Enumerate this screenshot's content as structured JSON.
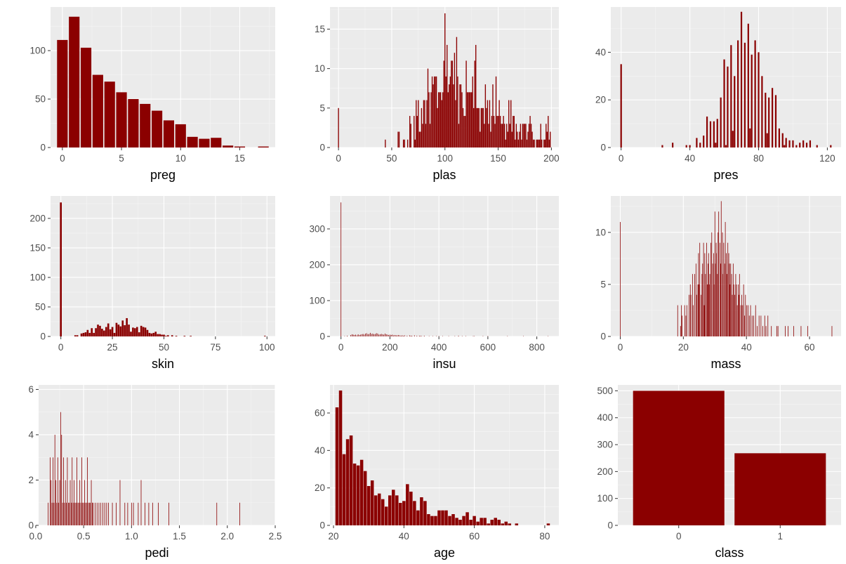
{
  "bar_color": "#8b0000",
  "panel_background": "#ebebeb",
  "chart_data": [
    {
      "type": "bar",
      "xlabel": "preg",
      "xlim": [
        -1,
        18
      ],
      "ylim": [
        0,
        145
      ],
      "xticks": [
        0,
        5,
        10,
        15
      ],
      "yticks": [
        0,
        50,
        100
      ],
      "bar_width": 0.9,
      "x": [
        0,
        1,
        2,
        3,
        4,
        5,
        6,
        7,
        8,
        9,
        10,
        11,
        12,
        13,
        14,
        15,
        17
      ],
      "values": [
        111,
        135,
        103,
        75,
        68,
        57,
        50,
        45,
        38,
        28,
        24,
        11,
        9,
        10,
        2,
        1,
        1
      ]
    },
    {
      "type": "bar",
      "xlabel": "plas",
      "xlim": [
        -8,
        207
      ],
      "ylim": [
        0,
        17.8
      ],
      "xticks": [
        0,
        50,
        100,
        150,
        200
      ],
      "yticks": [
        0,
        5,
        10,
        15
      ],
      "bar_width": 0.9,
      "x": [
        0,
        44,
        56,
        57,
        61,
        62,
        65,
        67,
        68,
        71,
        72,
        73,
        74,
        75,
        76,
        77,
        78,
        79,
        80,
        81,
        82,
        83,
        84,
        85,
        86,
        87,
        88,
        89,
        90,
        91,
        92,
        93,
        94,
        95,
        96,
        97,
        98,
        99,
        100,
        101,
        102,
        103,
        104,
        105,
        106,
        107,
        108,
        109,
        110,
        111,
        112,
        113,
        114,
        115,
        116,
        117,
        118,
        119,
        120,
        121,
        122,
        123,
        124,
        125,
        126,
        127,
        128,
        129,
        130,
        131,
        132,
        133,
        134,
        135,
        136,
        137,
        138,
        139,
        140,
        141,
        142,
        143,
        144,
        145,
        146,
        147,
        148,
        149,
        150,
        151,
        152,
        153,
        154,
        155,
        156,
        157,
        158,
        159,
        160,
        161,
        162,
        163,
        164,
        165,
        166,
        167,
        168,
        169,
        170,
        171,
        172,
        173,
        174,
        175,
        176,
        177,
        178,
        179,
        180,
        181,
        182,
        183,
        184,
        186,
        187,
        188,
        189,
        190,
        191,
        193,
        194,
        195,
        196,
        197,
        198,
        199
      ],
      "values": [
        5,
        1,
        2,
        2,
        1,
        1,
        1,
        4,
        3,
        4,
        1,
        6,
        4,
        6,
        2,
        2,
        5,
        3,
        6,
        6,
        3,
        6,
        10,
        7,
        3,
        7,
        9,
        8,
        9,
        9,
        9,
        5,
        7,
        7,
        7,
        6,
        7,
        11,
        17,
        9,
        13,
        7,
        8,
        9,
        11,
        11,
        8,
        12,
        6,
        14,
        9,
        3,
        8,
        8,
        7,
        5,
        4,
        4,
        11,
        7,
        7,
        7,
        7,
        7,
        9,
        5,
        11,
        13,
        5,
        5,
        5,
        2,
        5,
        5,
        5,
        3,
        8,
        5,
        6,
        3,
        6,
        2,
        4,
        8,
        4,
        3,
        9,
        4,
        4,
        6,
        4,
        3,
        3,
        4,
        3,
        1,
        3,
        2,
        6,
        3,
        6,
        2,
        4,
        4,
        1,
        3,
        2,
        1,
        2,
        3,
        1,
        3,
        3,
        3,
        3,
        1,
        2,
        3,
        4,
        3,
        2,
        1,
        1,
        1,
        1,
        1,
        1,
        3,
        1,
        1,
        1,
        3,
        2,
        4,
        1,
        2
      ]
    },
    {
      "type": "bar",
      "xlabel": "pres",
      "xlim": [
        -6,
        128
      ],
      "ylim": [
        0,
        59
      ],
      "xticks": [
        0,
        40,
        80,
        120
      ],
      "yticks": [
        0,
        20,
        40
      ],
      "bar_width": 0.9,
      "x": [
        0,
        24,
        30,
        38,
        40,
        44,
        46,
        48,
        50,
        52,
        54,
        55,
        56,
        58,
        60,
        61,
        62,
        64,
        65,
        66,
        68,
        70,
        72,
        74,
        75,
        76,
        78,
        80,
        82,
        84,
        85,
        86,
        88,
        90,
        92,
        94,
        95,
        96,
        98,
        100,
        102,
        104,
        106,
        108,
        110,
        114,
        122
      ],
      "values": [
        35,
        1,
        2,
        1,
        1,
        4,
        2,
        5,
        13,
        11,
        11,
        2,
        12,
        21,
        37,
        1,
        34,
        43,
        7,
        30,
        45,
        57,
        44,
        52,
        8,
        39,
        45,
        40,
        30,
        23,
        6,
        21,
        25,
        22,
        8,
        6,
        1,
        4,
        3,
        3,
        1,
        2,
        3,
        2,
        3,
        1,
        1
      ]
    },
    {
      "type": "bar",
      "xlabel": "skin",
      "xlim": [
        -5,
        104
      ],
      "ylim": [
        0,
        238
      ],
      "xticks": [
        0,
        25,
        50,
        75,
        100
      ],
      "yticks": [
        0,
        50,
        100,
        150,
        200
      ],
      "bar_width": 0.9,
      "x": [
        0,
        7,
        8,
        10,
        11,
        12,
        13,
        14,
        15,
        16,
        17,
        18,
        19,
        20,
        21,
        22,
        23,
        24,
        25,
        26,
        27,
        28,
        29,
        30,
        31,
        32,
        33,
        34,
        35,
        36,
        37,
        38,
        39,
        40,
        41,
        42,
        43,
        44,
        45,
        46,
        47,
        48,
        49,
        50,
        51,
        52,
        54,
        56,
        60,
        63,
        99
      ],
      "values": [
        227,
        2,
        2,
        5,
        6,
        7,
        11,
        6,
        14,
        6,
        14,
        20,
        18,
        13,
        10,
        16,
        22,
        12,
        16,
        6,
        23,
        20,
        17,
        27,
        19,
        31,
        20,
        8,
        15,
        14,
        16,
        7,
        18,
        16,
        15,
        11,
        6,
        5,
        6,
        8,
        4,
        4,
        3,
        3,
        1,
        2,
        2,
        1,
        1,
        1,
        1
      ]
    },
    {
      "type": "bar",
      "xlabel": "insu",
      "xlim": [
        -45,
        890
      ],
      "ylim": [
        0,
        392
      ],
      "xticks": [
        0,
        200,
        400,
        600,
        800
      ],
      "yticks": [
        0,
        100,
        200,
        300
      ],
      "bar_width": 1.6,
      "x": [
        0,
        15,
        25,
        40,
        45,
        50,
        55,
        60,
        65,
        70,
        75,
        80,
        85,
        90,
        95,
        100,
        105,
        110,
        115,
        120,
        125,
        130,
        135,
        140,
        145,
        150,
        155,
        160,
        165,
        170,
        175,
        180,
        185,
        190,
        195,
        200,
        205,
        210,
        215,
        220,
        225,
        230,
        235,
        240,
        245,
        250,
        255,
        260,
        270,
        280,
        285,
        290,
        300,
        310,
        320,
        325,
        330,
        340,
        360,
        375,
        390,
        400,
        415,
        440,
        465,
        480,
        495,
        510,
        540,
        545,
        580,
        600,
        680,
        745,
        846
      ],
      "values": [
        374,
        1,
        2,
        4,
        6,
        5,
        4,
        5,
        3,
        6,
        4,
        5,
        6,
        7,
        5,
        8,
        9,
        6,
        7,
        10,
        7,
        8,
        6,
        7,
        9,
        8,
        5,
        6,
        7,
        6,
        5,
        8,
        6,
        5,
        4,
        5,
        4,
        5,
        3,
        4,
        3,
        3,
        4,
        3,
        2,
        3,
        2,
        3,
        2,
        3,
        2,
        2,
        3,
        2,
        2,
        2,
        1,
        2,
        1,
        1,
        1,
        1,
        1,
        1,
        1,
        2,
        1,
        1,
        1,
        1,
        1,
        1,
        1,
        1,
        1
      ]
    },
    {
      "type": "bar",
      "xlabel": "mass",
      "xlim": [
        -3,
        70
      ],
      "ylim": [
        0,
        13.5
      ],
      "xticks": [
        0,
        20,
        40,
        60
      ],
      "yticks": [
        0,
        5,
        10
      ],
      "bar_width": 0.07,
      "x": [
        0,
        18.2,
        19.1,
        19.4,
        19.6,
        20.4,
        20.8,
        21.1,
        21.8,
        22.2,
        22.4,
        22.9,
        23.1,
        23.6,
        24.0,
        24.2,
        24.6,
        24.8,
        25.0,
        25.2,
        25.6,
        25.9,
        26.1,
        26.4,
        26.6,
        26.8,
        27.0,
        27.4,
        27.6,
        27.8,
        28.0,
        28.2,
        28.4,
        28.7,
        29.0,
        29.3,
        29.6,
        29.7,
        30.0,
        30.1,
        30.4,
        30.5,
        30.8,
        31.0,
        31.2,
        31.6,
        31.8,
        32.0,
        32.4,
        32.5,
        32.8,
        33.1,
        33.3,
        33.6,
        33.8,
        34.1,
        34.4,
        34.6,
        34.8,
        35.0,
        35.3,
        35.5,
        35.8,
        36.0,
        36.3,
        36.6,
        36.8,
        37.1,
        37.4,
        37.6,
        37.8,
        38.2,
        38.5,
        38.8,
        39.1,
        39.4,
        39.7,
        40.1,
        40.5,
        40.9,
        41.3,
        41.8,
        42.3,
        42.9,
        43.4,
        44.0,
        44.6,
        45.2,
        45.8,
        46.2,
        46.8,
        47.9,
        49.6,
        50.0,
        52.3,
        53.2,
        55.0,
        57.3,
        59.4,
        67.1
      ],
      "values": [
        11,
        3,
        1,
        3,
        2,
        3,
        2,
        3,
        4,
        5,
        4,
        6,
        3,
        6,
        7,
        4,
        5,
        8,
        5,
        9,
        4,
        6,
        7,
        9,
        3,
        8,
        6,
        9,
        5,
        7,
        8,
        5,
        6,
        9,
        10,
        7,
        8,
        5,
        12,
        7,
        9,
        8,
        6,
        10,
        12,
        9,
        7,
        13,
        10,
        6,
        9,
        7,
        11,
        8,
        6,
        9,
        8,
        7,
        5,
        7,
        6,
        4,
        7,
        5,
        4,
        6,
        5,
        3,
        5,
        4,
        6,
        3,
        4,
        3,
        5,
        2,
        4,
        3,
        3,
        2,
        3,
        2,
        2,
        3,
        1,
        2,
        2,
        1,
        2,
        1,
        2,
        1,
        1,
        1,
        1,
        1,
        1,
        1,
        1,
        1
      ]
    },
    {
      "type": "bar",
      "xlabel": "pedi",
      "xlim": [
        0.03,
        2.5
      ],
      "ylim": [
        0,
        6.2
      ],
      "xticks": [
        0,
        0.5,
        1,
        1.5,
        2,
        2.5
      ],
      "xticklabels": [
        "0.0",
        "0.5",
        "1.0",
        "1.5",
        "2.0",
        "2.5"
      ],
      "yticks": [
        0,
        2,
        4,
        6
      ],
      "bar_width": 0.003,
      "x": [
        0.13,
        0.15,
        0.16,
        0.17,
        0.18,
        0.19,
        0.2,
        0.21,
        0.22,
        0.23,
        0.24,
        0.25,
        0.26,
        0.27,
        0.28,
        0.29,
        0.3,
        0.31,
        0.32,
        0.33,
        0.34,
        0.35,
        0.36,
        0.37,
        0.38,
        0.39,
        0.4,
        0.41,
        0.42,
        0.43,
        0.44,
        0.45,
        0.46,
        0.47,
        0.48,
        0.49,
        0.5,
        0.51,
        0.52,
        0.53,
        0.54,
        0.55,
        0.56,
        0.57,
        0.58,
        0.59,
        0.6,
        0.62,
        0.64,
        0.66,
        0.68,
        0.7,
        0.72,
        0.74,
        0.76,
        0.8,
        0.84,
        0.88,
        0.93,
        0.96,
        1.0,
        1.02,
        1.07,
        1.1,
        1.14,
        1.18,
        1.22,
        1.28,
        1.39,
        1.89,
        2.13
      ],
      "values": [
        1,
        3,
        2,
        1,
        3,
        1,
        4,
        2,
        1,
        3,
        1,
        2,
        5,
        4,
        1,
        3,
        1,
        2,
        1,
        3,
        1,
        1,
        2,
        1,
        3,
        1,
        2,
        1,
        1,
        3,
        1,
        1,
        2,
        1,
        3,
        1,
        1,
        2,
        1,
        1,
        3,
        1,
        1,
        1,
        2,
        1,
        1,
        1,
        1,
        1,
        1,
        1,
        1,
        1,
        1,
        1,
        1,
        2,
        1,
        1,
        1,
        1,
        1,
        2,
        1,
        1,
        1,
        1,
        1,
        1,
        1
      ]
    },
    {
      "type": "bar",
      "xlabel": "age",
      "xlim": [
        19,
        84
      ],
      "ylim": [
        0,
        75
      ],
      "xticks": [
        20,
        40,
        60,
        80
      ],
      "yticks": [
        0,
        20,
        40,
        60
      ],
      "bar_width": 0.9,
      "x": [
        21,
        22,
        23,
        24,
        25,
        26,
        27,
        28,
        29,
        30,
        31,
        32,
        33,
        34,
        35,
        36,
        37,
        38,
        39,
        40,
        41,
        42,
        43,
        44,
        45,
        46,
        47,
        48,
        49,
        50,
        51,
        52,
        53,
        54,
        55,
        56,
        57,
        58,
        59,
        60,
        61,
        62,
        63,
        64,
        65,
        66,
        67,
        68,
        69,
        70,
        72,
        81
      ],
      "values": [
        63,
        72,
        38,
        46,
        48,
        33,
        32,
        35,
        29,
        21,
        24,
        16,
        17,
        14,
        10,
        16,
        19,
        16,
        12,
        13,
        22,
        18,
        13,
        8,
        15,
        13,
        6,
        5,
        5,
        8,
        8,
        8,
        5,
        6,
        4,
        3,
        5,
        7,
        3,
        5,
        2,
        4,
        4,
        1,
        3,
        4,
        3,
        1,
        2,
        1,
        1,
        1
      ]
    },
    {
      "type": "bar",
      "xlabel": "class",
      "categories": [
        "0",
        "1"
      ],
      "values": [
        500,
        268
      ],
      "ylim": [
        0,
        522
      ],
      "yticks": [
        0,
        100,
        200,
        300,
        400,
        500
      ]
    }
  ]
}
